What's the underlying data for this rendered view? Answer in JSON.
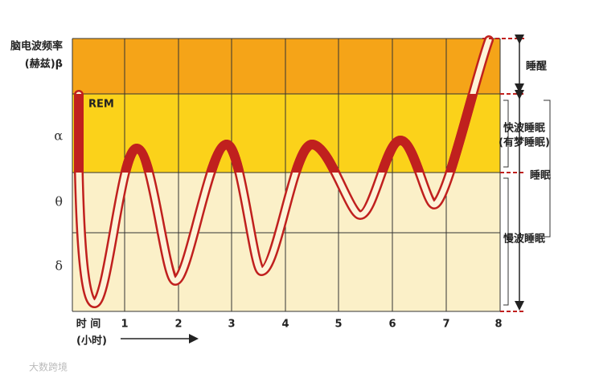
{
  "title": {
    "line1": "脑电波频率",
    "line2": "(赫兹)β"
  },
  "bands": [
    "α",
    "θ",
    "δ"
  ],
  "rem": "REM",
  "x_axis": {
    "label": "时 间",
    "unit": "(小时)",
    "hours": [
      "1",
      "2",
      "3",
      "4",
      "5",
      "6",
      "7",
      "8"
    ]
  },
  "stages": {
    "awake": "睡醒",
    "fast": "快波睡眠",
    "fast_note": "(有梦睡眠)",
    "sleep": "睡眠",
    "slow": "慢波睡眠"
  },
  "watermark": "大数跨境"
}
